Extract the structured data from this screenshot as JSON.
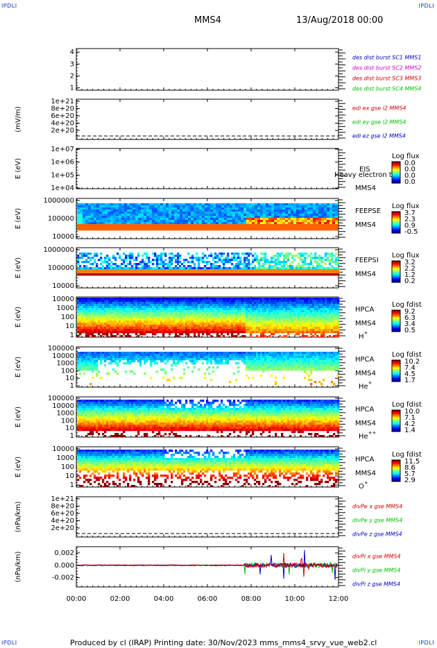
{
  "corners": {
    "tl": "IPDLI",
    "tr": "IPDLI",
    "bl": "IPDLI",
    "br": "IPDLI"
  },
  "header": {
    "spacecraft": "MMS4",
    "datetime": "13/Aug/2018 00:00"
  },
  "footer": {
    "text": "Produced by cl (IRAP)   Printing date: 30/Nov/2023   mms_mms4_srvy_vue_web2.cl"
  },
  "overlap_text": "Heavy electron tc",
  "colors": {
    "blue": "#0000c8",
    "magenta": "#d000d0",
    "red": "#d00000",
    "green": "#00c000"
  },
  "chart_data": [
    {
      "type": "line",
      "id": "burst",
      "yticks": [
        "1",
        "2",
        "3",
        "4"
      ],
      "ylim": [
        0.8,
        4.3
      ],
      "legend": [
        {
          "label": "des dist burst SC1 MMS1",
          "color": "blue"
        },
        {
          "label": "des dist burst SC2 MMS2",
          "color": "magenta"
        },
        {
          "label": "des dist burst SC3 MMS3",
          "color": "red"
        },
        {
          "label": "des dist burst SC4 MMS4",
          "color": "green"
        }
      ]
    },
    {
      "type": "line",
      "id": "edi",
      "ylabel": "(mV/m)",
      "yticks": [
        "2e+20",
        "4e+20",
        "6e+20",
        "8e+20",
        "1e+21"
      ],
      "legend": [
        {
          "label": "edi ex gse l2 MMS4",
          "color": "red"
        },
        {
          "label": "edi ey gse l2 MMS4",
          "color": "green"
        },
        {
          "label": "edi ez gse l2 MMS4",
          "color": "blue"
        }
      ]
    },
    {
      "type": "heatmap",
      "id": "eis",
      "ylabel": "E (eV)",
      "yticks": [
        "1e+04",
        "1e+05",
        "1e+06",
        "1e+07"
      ],
      "labels": [
        "EIS",
        "MMS4"
      ],
      "cbar_title": "Log flux",
      "cbar_ticks": [
        "0.0",
        "0.0",
        "0.0",
        "0.0"
      ]
    },
    {
      "type": "heatmap",
      "id": "feepse",
      "ylabel": "E (eV)",
      "yticks": [
        "10000",
        "100000",
        "1000000"
      ],
      "labels": [
        "FEEPSE",
        "MMS4"
      ],
      "cbar_title": "Log flux",
      "cbar_ticks": [
        "3.7",
        "2.3",
        "0.9",
        "-0.5"
      ]
    },
    {
      "type": "heatmap",
      "id": "feepsi",
      "ylabel": "E (eV)",
      "yticks": [
        "10000",
        "100000",
        "1000000"
      ],
      "labels": [
        "FEEPSI",
        "MMS4"
      ],
      "cbar_title": "Log flux",
      "cbar_ticks": [
        "3.2",
        "2.2",
        "1.2",
        "0.2"
      ]
    },
    {
      "type": "heatmap",
      "id": "hpca-h",
      "ylabel": "E (eV)",
      "yticks": [
        "1",
        "10",
        "100",
        "1000",
        "10000"
      ],
      "labels": [
        "HPCA",
        "MMS4",
        "H+"
      ],
      "cbar_title": "Log fdist",
      "cbar_ticks": [
        "9.2",
        "6.3",
        "3.4",
        "0.5"
      ]
    },
    {
      "type": "heatmap",
      "id": "hpca-he",
      "ylabel": "E (eV)",
      "yticks": [
        "1",
        "10",
        "100",
        "1000",
        "10000",
        "100000"
      ],
      "labels": [
        "HPCA",
        "MMS4",
        "He+"
      ],
      "cbar_title": "Log fdist",
      "cbar_ticks": [
        "10.2",
        "7.4",
        "4.5",
        "1.7"
      ]
    },
    {
      "type": "heatmap",
      "id": "hpca-hepp",
      "ylabel": "E (eV)",
      "yticks": [
        "1",
        "10",
        "100",
        "1000",
        "10000",
        "100000"
      ],
      "labels": [
        "HPCA",
        "MMS4",
        "He++"
      ],
      "cbar_title": "Log fdist",
      "cbar_ticks": [
        "10.0",
        "7.1",
        "4.2",
        "1.4"
      ]
    },
    {
      "type": "heatmap",
      "id": "hpca-o",
      "ylabel": "E (eV)",
      "yticks": [
        "1",
        "10",
        "100",
        "1000",
        "10000"
      ],
      "labels": [
        "HPCA",
        "MMS4",
        "O+"
      ],
      "cbar_title": "Log fdist",
      "cbar_ticks": [
        "11.5",
        "8.6",
        "5.7",
        "2.9"
      ]
    },
    {
      "type": "line",
      "id": "divpe",
      "ylabel": "(nPa/km)",
      "yticks": [
        "2e+20",
        "4e+20",
        "6e+20",
        "8e+20",
        "1e+21"
      ],
      "legend": [
        {
          "label": "divPe x gse MMS4",
          "color": "red"
        },
        {
          "label": "divPe y gse MMS4",
          "color": "green"
        },
        {
          "label": "divPe z gse MMS4",
          "color": "blue"
        }
      ]
    },
    {
      "type": "line",
      "id": "divpi",
      "ylabel": "(nPa/km)",
      "yticks": [
        "-0.002",
        "0.000",
        "0.002"
      ],
      "ylim": [
        -0.0035,
        0.003
      ],
      "legend": [
        {
          "label": "divPi x gse MMS4",
          "color": "red"
        },
        {
          "label": "divPi y gse MMS4",
          "color": "green"
        },
        {
          "label": "divPi z gse MMS4",
          "color": "blue"
        }
      ]
    }
  ],
  "xaxis": {
    "ticks": [
      "00:00",
      "02:00",
      "04:00",
      "06:00",
      "08:00",
      "10:00",
      "12:00"
    ],
    "xlim_hours": [
      0,
      12
    ]
  }
}
